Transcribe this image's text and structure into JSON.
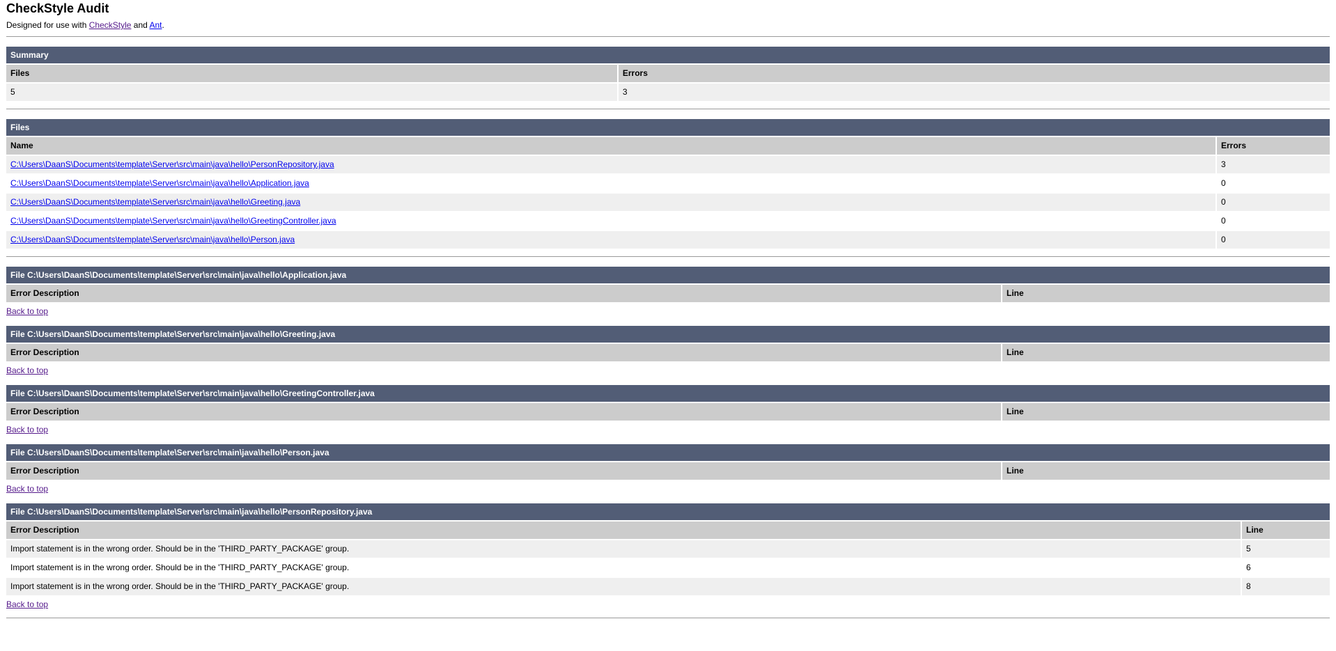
{
  "page": {
    "title": "CheckStyle Audit",
    "subtitle": {
      "prefix": "Designed for use with ",
      "checkstyle_label": "CheckStyle",
      "and_text": " and ",
      "ant_label": "Ant",
      "period": "."
    }
  },
  "colors": {
    "banner_bg": "#525D76",
    "banner_text": "#FFFFFF",
    "column_header_bg": "#CCCCCC",
    "row_stripe": "#EFEFEF",
    "row_plain": "#FFFFFF",
    "link_blue": "#0000EE",
    "link_visited_purple": "#551A8B"
  },
  "summary": {
    "heading": "Summary",
    "columns": [
      "Files",
      "Errors"
    ],
    "files_count": "5",
    "errors_count": "3"
  },
  "files": {
    "heading": "Files",
    "columns": [
      "Name",
      "Errors"
    ],
    "rows": [
      {
        "path": "C:\\Users\\DaanS\\Documents\\template\\Server\\src\\main\\java\\hello\\PersonRepository.java",
        "errors": "3"
      },
      {
        "path": "C:\\Users\\DaanS\\Documents\\template\\Server\\src\\main\\java\\hello\\Application.java",
        "errors": "0"
      },
      {
        "path": "C:\\Users\\DaanS\\Documents\\template\\Server\\src\\main\\java\\hello\\Greeting.java",
        "errors": "0"
      },
      {
        "path": "C:\\Users\\DaanS\\Documents\\template\\Server\\src\\main\\java\\hello\\GreetingController.java",
        "errors": "0"
      },
      {
        "path": "C:\\Users\\DaanS\\Documents\\template\\Server\\src\\main\\java\\hello\\Person.java",
        "errors": "0"
      }
    ]
  },
  "error_columns": [
    "Error Description",
    "Line"
  ],
  "back_to_top_label": "Back to top",
  "file_sections": [
    {
      "heading": "File C:\\Users\\DaanS\\Documents\\template\\Server\\src\\main\\java\\hello\\Application.java",
      "rows": []
    },
    {
      "heading": "File C:\\Users\\DaanS\\Documents\\template\\Server\\src\\main\\java\\hello\\Greeting.java",
      "rows": []
    },
    {
      "heading": "File C:\\Users\\DaanS\\Documents\\template\\Server\\src\\main\\java\\hello\\GreetingController.java",
      "rows": []
    },
    {
      "heading": "File C:\\Users\\DaanS\\Documents\\template\\Server\\src\\main\\java\\hello\\Person.java",
      "rows": []
    },
    {
      "heading": "File C:\\Users\\DaanS\\Documents\\template\\Server\\src\\main\\java\\hello\\PersonRepository.java",
      "rows": [
        {
          "description": "Import statement is in the wrong order. Should be in the 'THIRD_PARTY_PACKAGE' group.",
          "line": "5"
        },
        {
          "description": "Import statement is in the wrong order. Should be in the 'THIRD_PARTY_PACKAGE' group.",
          "line": "6"
        },
        {
          "description": "Import statement is in the wrong order. Should be in the 'THIRD_PARTY_PACKAGE' group.",
          "line": "8"
        }
      ]
    }
  ]
}
